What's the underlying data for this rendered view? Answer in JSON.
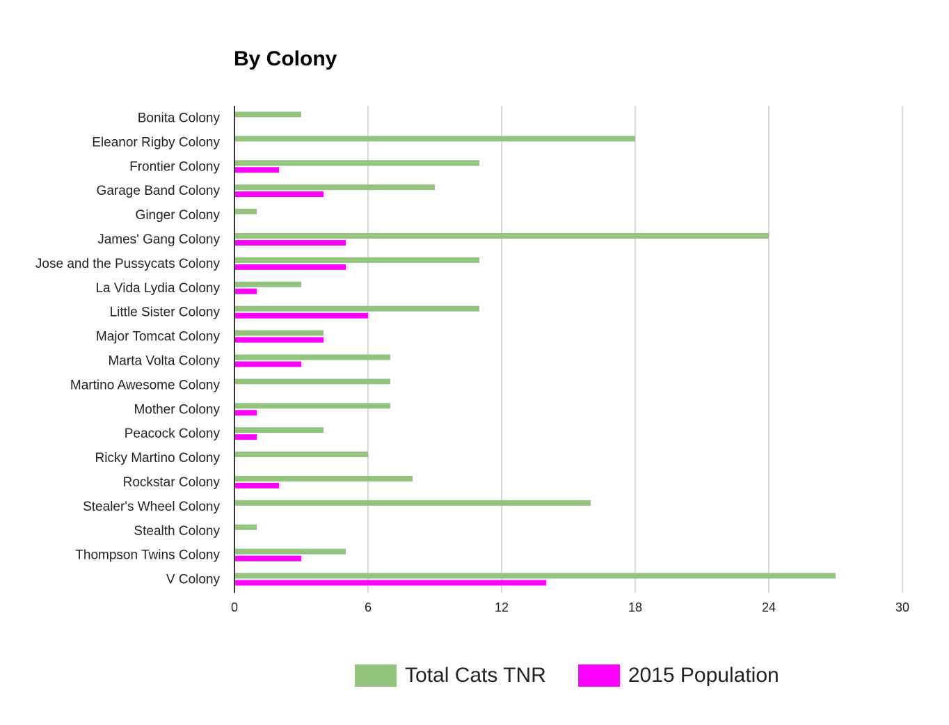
{
  "chart_data": {
    "type": "bar",
    "orientation": "horizontal",
    "title": "By Colony",
    "xlabel": "",
    "ylabel": "",
    "xlim": [
      0,
      30
    ],
    "x_ticks": [
      0,
      6,
      12,
      18,
      24,
      30
    ],
    "grid": true,
    "legend_position": "bottom",
    "categories": [
      "Bonita Colony",
      "Eleanor Rigby Colony",
      "Frontier Colony",
      "Garage Band Colony",
      "Ginger Colony",
      "James' Gang Colony",
      "Jose and the Pussycats Colony",
      "La Vida Lydia Colony",
      "Little Sister Colony",
      "Major Tomcat Colony",
      "Marta Volta Colony",
      "Martino Awesome Colony",
      "Mother Colony",
      "Peacock Colony",
      "Ricky Martino Colony",
      "Rockstar Colony",
      "Stealer's Wheel Colony",
      "Stealth Colony",
      "Thompson Twins Colony",
      "V Colony"
    ],
    "series": [
      {
        "name": "Total Cats TNR",
        "color": "#93c47d",
        "values": [
          3,
          18,
          11,
          9,
          1,
          24,
          11,
          3,
          11,
          4,
          7,
          7,
          7,
          4,
          6,
          8,
          16,
          1,
          5,
          27
        ]
      },
      {
        "name": "2015 Population",
        "color": "#ff00ff",
        "values": [
          0,
          0,
          2,
          4,
          0,
          5,
          5,
          1,
          6,
          4,
          3,
          0,
          1,
          1,
          0,
          2,
          0,
          0,
          3,
          14
        ]
      }
    ]
  }
}
